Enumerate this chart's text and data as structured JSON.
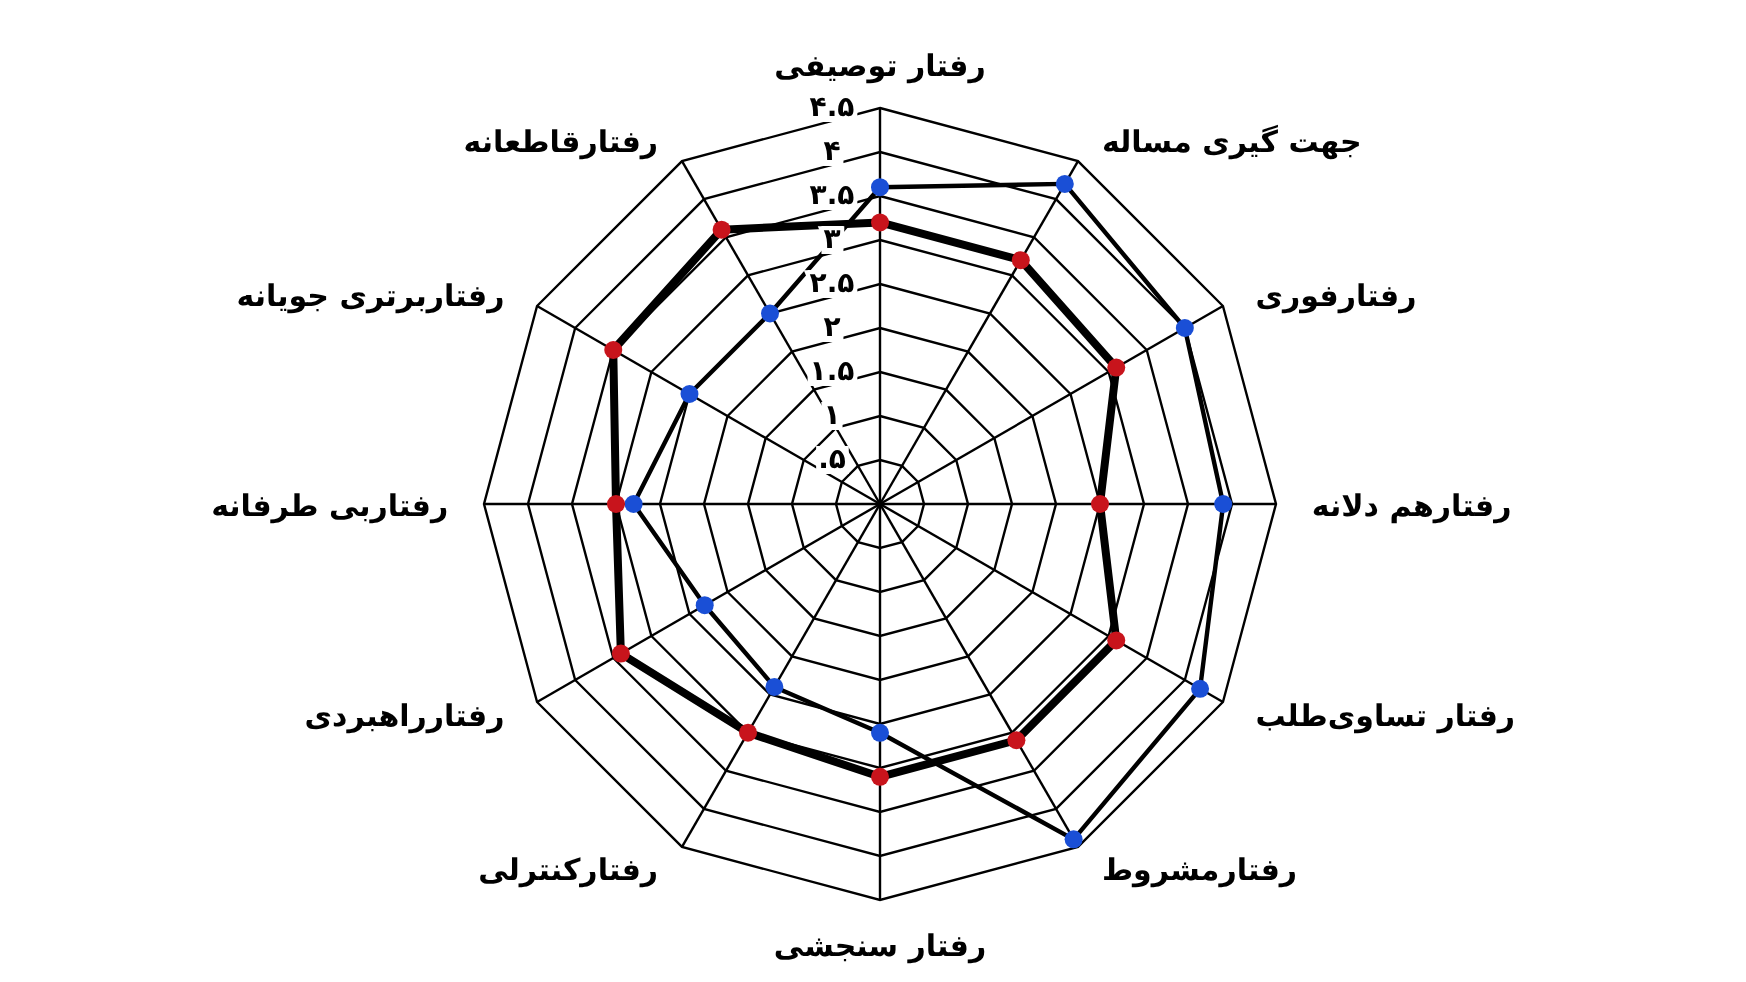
{
  "chart_data": {
    "type": "radar",
    "categories": [
      "رفتار توصیفی",
      "جهت گیری مساله",
      "رفتارفوری",
      "رفتارهم دلانه",
      "رفتار تساوی‌طلب",
      "رفتارمشروط",
      "رفتار سنجشی",
      "رفتارکنترلی",
      "رفتارراهبردی",
      "رفتاربی طرفانه",
      "رفتاربرتری جویانه",
      "رفتارقاطعانه"
    ],
    "series": [
      {
        "color": "#000000",
        "colors": [
          "#1a4fd6",
          "#1a4fd6",
          "#1a4fd6",
          "#1a4fd6",
          "#1a4fd6",
          "#1a4fd6",
          "#1a4fd6",
          "#1a4fd6",
          "#1a4fd6",
          "#1a4fd6",
          "#1a4fd6",
          "#1a4fd6"
        ],
        "values": [
          3.6,
          4.2,
          4.0,
          3.9,
          4.2,
          4.4,
          2.6,
          2.4,
          2.3,
          2.8,
          2.5,
          2.5
        ]
      },
      {
        "color": "#000000",
        "colors": [
          "#c8141c",
          "#c8141c",
          "#c8141c",
          "#c8141c",
          "#c8141c",
          "#c8141c",
          "#c8141c",
          "#c8141c",
          "#c8141c",
          "#c8141c",
          "#c8141c",
          "#c8141c"
        ],
        "values": [
          3.2,
          3.2,
          3.1,
          2.5,
          3.1,
          3.1,
          3.1,
          3.0,
          3.4,
          3.0,
          3.5,
          3.6
        ]
      }
    ],
    "ylim": [
      0,
      4.5
    ],
    "yticks": [
      {
        "value": 0.5,
        "label": ".۵"
      },
      {
        "value": 1,
        "label": "۱"
      },
      {
        "value": 1.5,
        "label": "۱.۵"
      },
      {
        "value": 2,
        "label": "۲"
      },
      {
        "value": 2.5,
        "label": "۲.۵"
      },
      {
        "value": 3,
        "label": "۳"
      },
      {
        "value": 3.5,
        "label": "۳.۵"
      },
      {
        "value": 4,
        "label": "۴"
      },
      {
        "value": 4.5,
        "label": "۴.۵"
      }
    ],
    "grid": true,
    "marker": "circle"
  }
}
